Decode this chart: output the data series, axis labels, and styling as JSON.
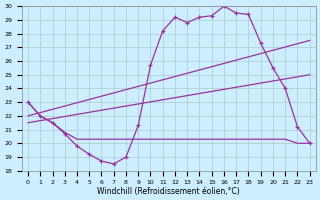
{
  "xlabel": "Windchill (Refroidissement éolien,°C)",
  "x_ticks": [
    0,
    1,
    2,
    3,
    4,
    5,
    6,
    7,
    8,
    9,
    10,
    11,
    12,
    13,
    14,
    15,
    16,
    17,
    18,
    19,
    20,
    21,
    22,
    23
  ],
  "ylim": [
    18,
    30
  ],
  "xlim": [
    -0.5,
    23.5
  ],
  "yticks": [
    18,
    19,
    20,
    21,
    22,
    23,
    24,
    25,
    26,
    27,
    28,
    29,
    30
  ],
  "line_color": "#993399",
  "bg_color": "#cceeff",
  "grid_color": "#aacccc",
  "series1_x": [
    0,
    1,
    2,
    3,
    4,
    5,
    6,
    7,
    8,
    9,
    10,
    11,
    12,
    13,
    14,
    15,
    16,
    17,
    18,
    19,
    20,
    21,
    22,
    23
  ],
  "series1_y": [
    23.0,
    22.0,
    21.5,
    20.7,
    19.8,
    19.2,
    18.7,
    18.5,
    19.0,
    21.3,
    25.7,
    28.2,
    29.2,
    28.8,
    29.2,
    29.3,
    30.0,
    29.5,
    29.4,
    27.3,
    25.5,
    24.0,
    21.2,
    20.0
  ],
  "series2_x": [
    0,
    23
  ],
  "series2_y": [
    22.0,
    27.5
  ],
  "series3_x": [
    0,
    23
  ],
  "series3_y": [
    21.5,
    25.0
  ],
  "series4_x": [
    0,
    1,
    2,
    3,
    4,
    5,
    6,
    7,
    8,
    9,
    10,
    11,
    12,
    13,
    14,
    15,
    16,
    17,
    18,
    19,
    20,
    21,
    22,
    23
  ],
  "series4_y": [
    23.0,
    22.0,
    21.5,
    20.8,
    20.3,
    20.3,
    20.3,
    20.3,
    20.3,
    20.3,
    20.3,
    20.3,
    20.3,
    20.3,
    20.3,
    20.3,
    20.3,
    20.3,
    20.3,
    20.3,
    20.3,
    20.3,
    20.0,
    20.0
  ]
}
